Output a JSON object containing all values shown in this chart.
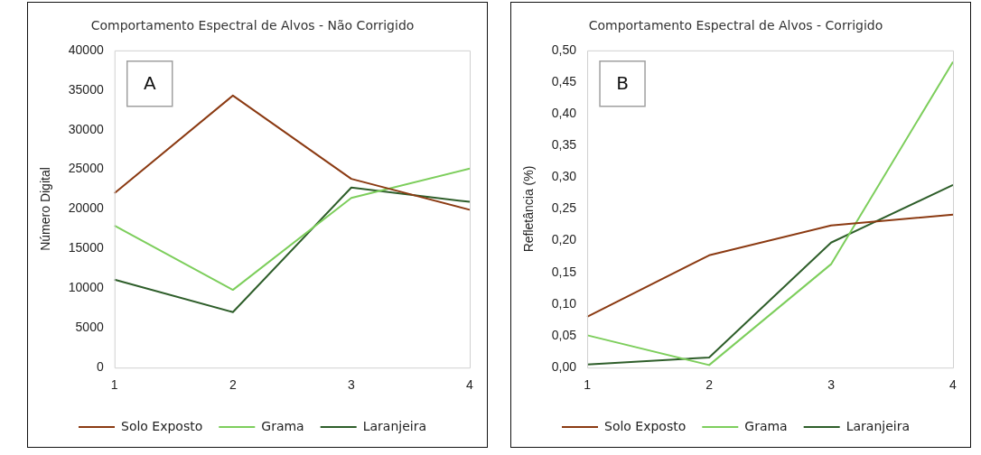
{
  "chart_data": [
    {
      "type": "line",
      "title": "Comportamento Espectral de Alvos - Não Corrigido",
      "ylabel": "Número Digital",
      "categories": [
        "1",
        "2",
        "3",
        "4"
      ],
      "annotations": [
        "A"
      ],
      "series": [
        {
          "name": "Solo Exposto",
          "color": "#8b3a12",
          "values": [
            22000,
            34300,
            23800,
            19900
          ]
        },
        {
          "name": "Grama",
          "color": "#7dce5c",
          "values": [
            17900,
            9800,
            21400,
            25100
          ]
        },
        {
          "name": "Laranjeira",
          "color": "#2e5e2a",
          "values": [
            11100,
            7000,
            22700,
            20900
          ]
        }
      ],
      "ylim": [
        0,
        40000
      ],
      "yticks": [
        0,
        5000,
        10000,
        15000,
        20000,
        25000,
        30000,
        35000,
        40000
      ],
      "grid": false,
      "legend": "bottom",
      "marker": "none",
      "line_style": "solid"
    },
    {
      "type": "line",
      "title": "Comportamento Espectral de Alvos - Corrigido",
      "ylabel": "Refletância (%)",
      "categories": [
        "1",
        "2",
        "3",
        "4"
      ],
      "annotations": [
        "B"
      ],
      "series": [
        {
          "name": "Solo Exposto",
          "color": "#8b3a12",
          "values": [
            0.08,
            0.177,
            0.224,
            0.241
          ]
        },
        {
          "name": "Grama",
          "color": "#7dce5c",
          "values": [
            0.051,
            0.004,
            0.163,
            0.482
          ]
        },
        {
          "name": "Laranjeira",
          "color": "#2e5e2a",
          "values": [
            0.005,
            0.016,
            0.197,
            0.288
          ]
        }
      ],
      "ylim": [
        0,
        0.5
      ],
      "yticks": [
        {
          "value": 0,
          "label": "0,00"
        },
        {
          "value": 0.05,
          "label": "0,05"
        },
        {
          "value": 0.1,
          "label": "0,10"
        },
        {
          "value": 0.15,
          "label": "0,15"
        },
        {
          "value": 0.2,
          "label": "0,20"
        },
        {
          "value": 0.25,
          "label": "0,25"
        },
        {
          "value": 0.3,
          "label": "0,30"
        },
        {
          "value": 0.35,
          "label": "0,35"
        },
        {
          "value": 0.4,
          "label": "0,40"
        },
        {
          "value": 0.45,
          "label": "0,45"
        },
        {
          "value": 0.5,
          "label": "0,50"
        }
      ],
      "grid": false,
      "legend": "bottom",
      "marker": "none",
      "line_style": "solid"
    }
  ]
}
